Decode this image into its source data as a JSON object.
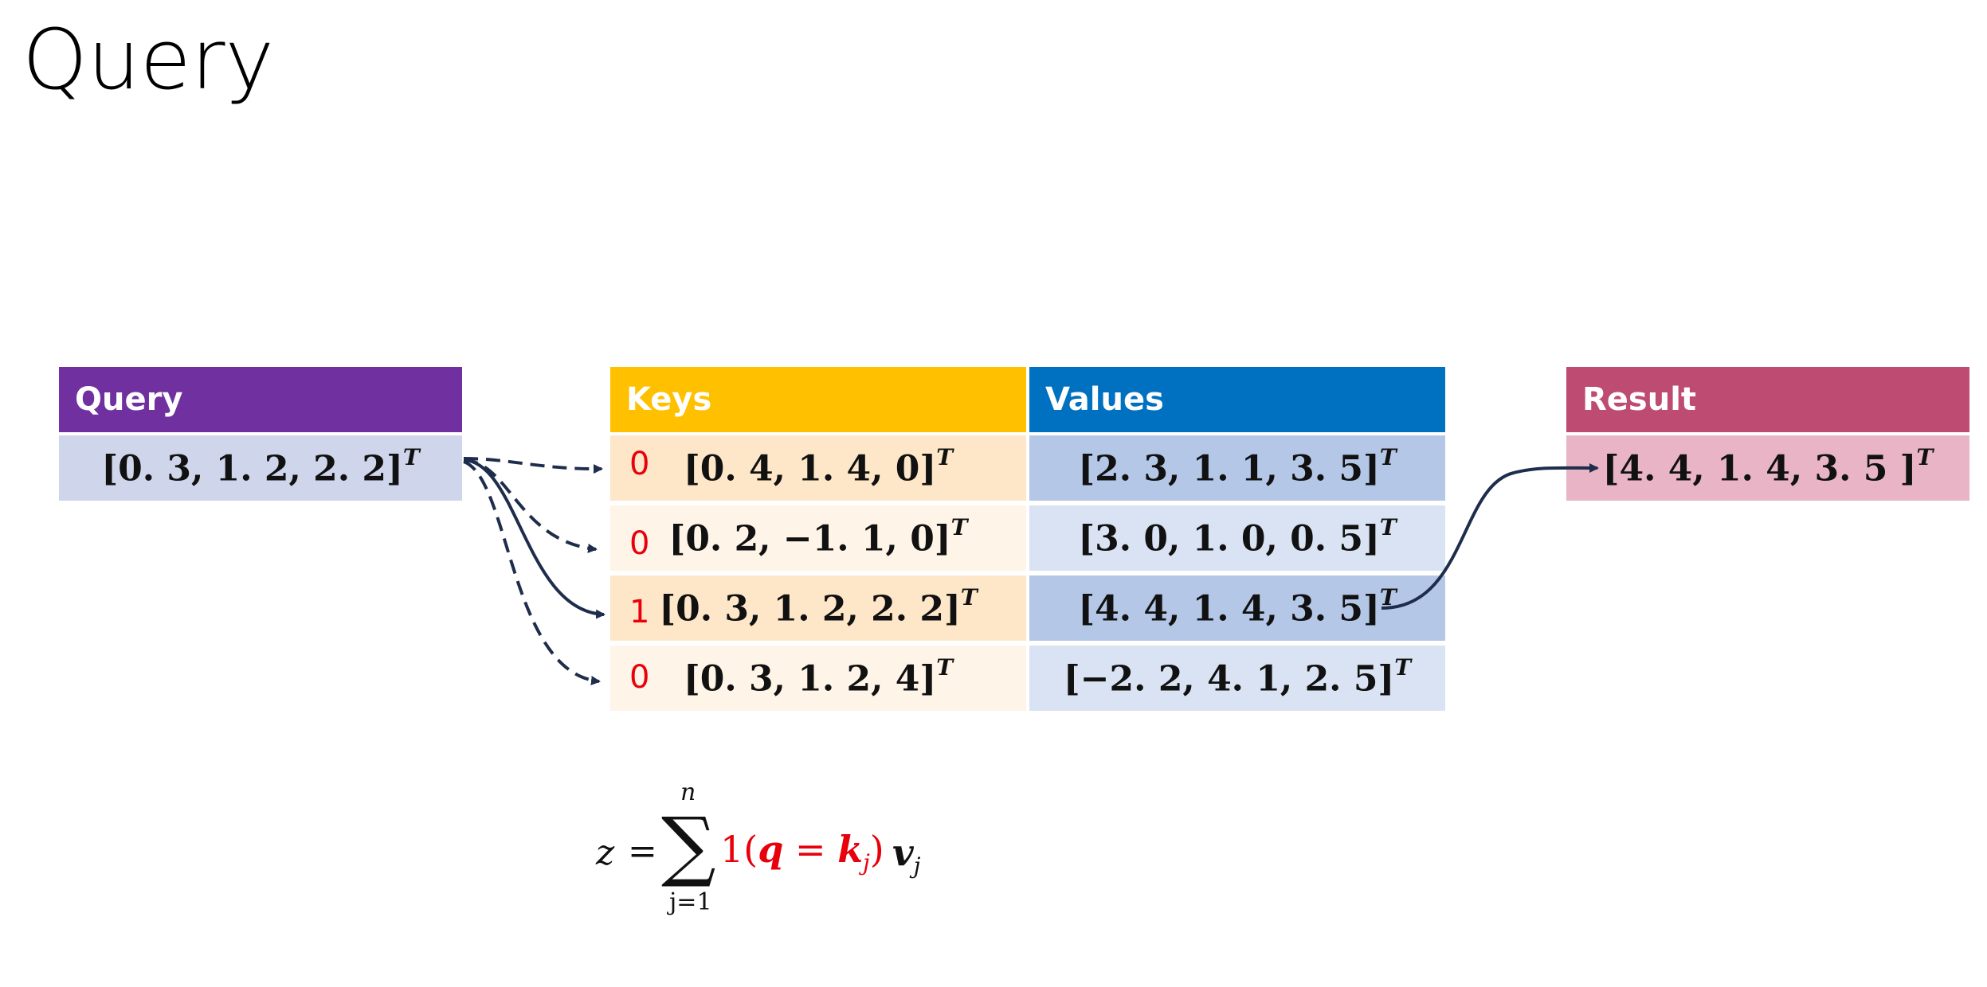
{
  "title": "Query",
  "headers": {
    "query": "Query",
    "keys": "Keys",
    "values": "Values",
    "result": "Result"
  },
  "query": {
    "vector": "[0. 3, 1. 2, 2. 2]",
    "sup": "T"
  },
  "rows": [
    {
      "flag": "0",
      "key": "[0. 4, 1. 4, 0]",
      "value": "[2. 3, 1. 1, 3. 5]",
      "sup": "T"
    },
    {
      "flag": "0",
      "key": "[0. 2, −1. 1, 0]",
      "value": "[3. 0, 1. 0, 0. 5]",
      "sup": "T"
    },
    {
      "flag": "1",
      "key": "[0. 3, 1. 2, 2. 2]",
      "value": "[4. 4, 1. 4, 3. 5]",
      "sup": "T"
    },
    {
      "flag": "0",
      "key": "[0. 3, 1. 2, 4]",
      "value": "[−2. 2, 4. 1, 2. 5]",
      "sup": "T"
    }
  ],
  "result": {
    "vector": "[4. 4, 1. 4, 3. 5 ]",
    "sup": "T"
  },
  "formula": {
    "lhs": "z",
    "eq": "=",
    "sigma": "∑",
    "upper": "n",
    "lower": "j=1",
    "indicator": "1(",
    "q": "q",
    "eq2": " = ",
    "k": "k",
    "ksub": "j",
    "close": ")",
    "v": "v",
    "vsub": "j"
  },
  "colors": {
    "query_header": "#7030a0",
    "query_cell": "#cfd5ea",
    "keys_header": "#ffc000",
    "keys_cell_dark": "#fde7c8",
    "keys_cell_light": "#fef4e7",
    "values_header": "#0070c0",
    "values_cell_dark": "#b4c7e7",
    "values_cell_light": "#dae3f3",
    "result_header": "#be4b72",
    "result_cell": "#e8b4c6",
    "arrow": "#1f2d4d",
    "flag": "#e8000b"
  }
}
